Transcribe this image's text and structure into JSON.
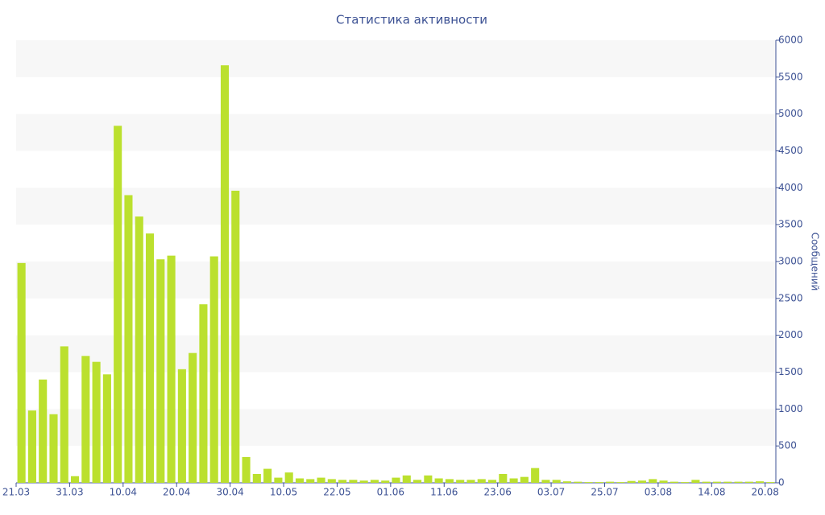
{
  "chart_data": {
    "type": "bar",
    "title": "Статистика активности",
    "y_label": "Сообщений",
    "categories": [
      "21.03",
      null,
      null,
      null,
      null,
      "31.03",
      null,
      null,
      null,
      null,
      "10.04",
      null,
      null,
      null,
      null,
      "20.04",
      null,
      null,
      null,
      null,
      "30.04",
      null,
      null,
      null,
      null,
      "10.05",
      null,
      null,
      null,
      null,
      "22.05",
      null,
      null,
      null,
      null,
      "01.06",
      null,
      null,
      null,
      null,
      "11.06",
      null,
      null,
      null,
      null,
      "23.06",
      null,
      null,
      null,
      null,
      "03.07",
      null,
      null,
      null,
      null,
      "25.07",
      null,
      null,
      null,
      null,
      "03.08",
      null,
      null,
      null,
      null,
      "14.08",
      null,
      null,
      null,
      null,
      "20.08"
    ],
    "values": [
      2980,
      980,
      1400,
      930,
      1850,
      90,
      1720,
      1640,
      1470,
      4840,
      3900,
      3610,
      3380,
      3030,
      3080,
      1540,
      1760,
      2420,
      3070,
      5660,
      3960,
      350,
      120,
      190,
      70,
      140,
      60,
      50,
      70,
      50,
      40,
      40,
      30,
      40,
      30,
      70,
      100,
      40,
      100,
      60,
      50,
      40,
      40,
      50,
      40,
      120,
      60,
      80,
      200,
      40,
      40,
      20,
      15,
      10,
      10,
      15,
      10,
      25,
      30,
      50,
      30,
      15,
      10,
      40,
      15,
      15,
      15,
      15,
      15,
      20,
      10
    ],
    "color": "#bbe02e",
    "ylim": [
      0,
      6000
    ],
    "yticks": [
      0,
      500,
      1000,
      1500,
      2000,
      2500,
      3000,
      3500,
      4000,
      4500,
      5000,
      5500,
      6000
    ],
    "grid": true,
    "y_axis_side": "right"
  }
}
